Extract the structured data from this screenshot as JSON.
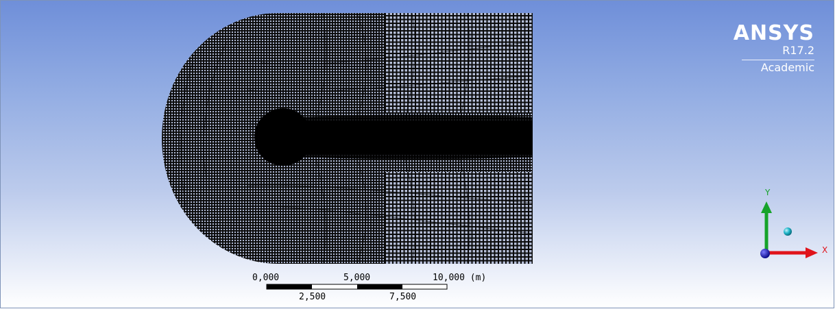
{
  "brand": {
    "name": "ANSYS",
    "version": "R17.2",
    "edition": "Academic"
  },
  "scale_bar": {
    "labels_top": [
      "0,000",
      "5,000",
      "10,000 (m)"
    ],
    "labels_bottom": [
      "2,500",
      "7,500"
    ]
  },
  "triad": {
    "x_label": "X",
    "y_label": "Y",
    "x_color": "#e0141b",
    "y_color": "#16a32a",
    "z_color": "#1b1bd6",
    "sphere_color": "#1fb5c9"
  },
  "colors": {
    "background_top": "#6f8fd9",
    "background_bottom": "#ffffff",
    "mesh": "#000000"
  }
}
